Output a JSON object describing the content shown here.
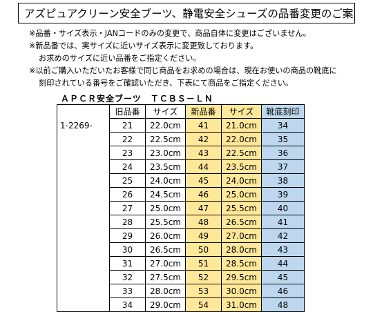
{
  "title": "アズピュアクリーン安全ブーツ、静電安全シューズの品番変更のご案内",
  "notes": [
    "※品番・サイズ表示・JANコードのみの変更で、商品自体に変更はございません。",
    "※新品番では、実サイズに近いサイズ表示に変更致しております。",
    "お求めのサイズに近い品番をご指定ください。",
    "※以前ご購入いただいたお客様で同じ商品をお求めの場合は、現在お使いの商品の靴底に",
    "刻印されている番号をご確認いただき、下表にて商品をご指定ください。"
  ],
  "subtitle": "ＡＰＣＲ安全ブーツ　ＴＣＢＳ－ＬＮ",
  "colors": {
    "new_highlight": "#ffe89a",
    "sole_highlight": "#bdd7ee"
  },
  "table": {
    "headers": [
      "",
      "旧品番",
      "サイズ",
      "新品番",
      "サイズ",
      "靴底刻印"
    ],
    "code": "1-2269-",
    "rows": [
      [
        "21",
        "22.0cm",
        "41",
        "21.0cm",
        "34"
      ],
      [
        "22",
        "22.5cm",
        "42",
        "22.0cm",
        "35"
      ],
      [
        "23",
        "23.0cm",
        "43",
        "22.5cm",
        "36"
      ],
      [
        "24",
        "23.5cm",
        "44",
        "23.5cm",
        "37"
      ],
      [
        "25",
        "24.0cm",
        "45",
        "24.0cm",
        "38"
      ],
      [
        "26",
        "24.5cm",
        "46",
        "25.0cm",
        "39"
      ],
      [
        "27",
        "25.0cm",
        "47",
        "25.5cm",
        "40"
      ],
      [
        "28",
        "25.5cm",
        "48",
        "26.5cm",
        "41"
      ],
      [
        "29",
        "26.0cm",
        "49",
        "27.0cm",
        "42"
      ],
      [
        "30",
        "26.5cm",
        "50",
        "28.0cm",
        "43"
      ],
      [
        "31",
        "27.0cm",
        "51",
        "28.5cm",
        "44"
      ],
      [
        "32",
        "27.5cm",
        "52",
        "29.5cm",
        "45"
      ],
      [
        "33",
        "28.0cm",
        "53",
        "30.0cm",
        "46"
      ],
      [
        "34",
        "29.0cm",
        "54",
        "31.0cm",
        "48"
      ]
    ]
  }
}
